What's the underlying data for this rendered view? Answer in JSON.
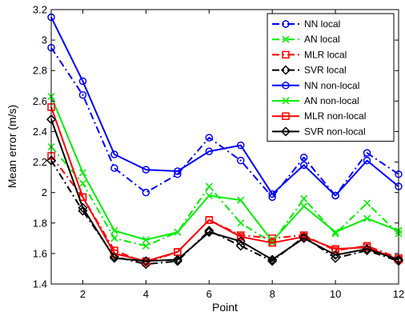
{
  "chart_data": {
    "type": "line",
    "title": "",
    "xlabel": "Point",
    "ylabel": "Mean error (m/s)",
    "xlim": [
      1,
      12
    ],
    "ylim": [
      1.4,
      3.2
    ],
    "x_ticks": [
      2,
      4,
      6,
      8,
      10,
      12
    ],
    "y_ticks": [
      1.4,
      1.6,
      1.8,
      2,
      2.2,
      2.4,
      2.6,
      2.8,
      3,
      3.2
    ],
    "x_tick_labels": [
      "2",
      "4",
      "6",
      "8",
      "10",
      "12"
    ],
    "y_tick_labels": [
      "1.4",
      "1.6",
      "1.8",
      "2",
      "2.2",
      "2.4",
      "2.6",
      "2.8",
      "3",
      "3.2"
    ],
    "grid": false,
    "legend_position": "top-right",
    "x": [
      1,
      2,
      3,
      4,
      5,
      6,
      7,
      8,
      9,
      10,
      11,
      12
    ],
    "series": [
      {
        "name": "NN local",
        "color": "#0000ff",
        "dash": "dashdot",
        "marker": "circle",
        "values": [
          2.95,
          2.64,
          2.16,
          2.0,
          2.12,
          2.36,
          2.21,
          1.97,
          2.23,
          1.98,
          2.26,
          2.12
        ]
      },
      {
        "name": "AN local",
        "color": "#00ee00",
        "dash": "dashdot",
        "marker": "x",
        "values": [
          2.3,
          2.06,
          1.7,
          1.65,
          1.74,
          2.04,
          1.8,
          1.67,
          1.96,
          1.73,
          1.93,
          1.73
        ]
      },
      {
        "name": "MLR local",
        "color": "#ff0000",
        "dash": "dashdot",
        "marker": "square",
        "values": [
          2.24,
          1.97,
          1.62,
          1.54,
          1.61,
          1.82,
          1.72,
          1.7,
          1.72,
          1.62,
          1.65,
          1.57
        ]
      },
      {
        "name": "SVR local",
        "color": "#000000",
        "dash": "dashdot",
        "marker": "diamond",
        "values": [
          2.21,
          1.88,
          1.58,
          1.53,
          1.55,
          1.75,
          1.65,
          1.55,
          1.71,
          1.57,
          1.62,
          1.55
        ]
      },
      {
        "name": "NN non-local",
        "color": "#0000ff",
        "dash": "solid",
        "marker": "circle",
        "values": [
          3.15,
          2.73,
          2.25,
          2.15,
          2.14,
          2.27,
          2.31,
          1.99,
          2.18,
          1.98,
          2.21,
          2.04
        ]
      },
      {
        "name": "AN non-local",
        "color": "#00ee00",
        "dash": "solid",
        "marker": "x",
        "values": [
          2.63,
          2.13,
          1.75,
          1.69,
          1.74,
          1.98,
          1.95,
          1.68,
          1.91,
          1.74,
          1.83,
          1.75
        ]
      },
      {
        "name": "MLR non-local",
        "color": "#ff0000",
        "dash": "solid",
        "marker": "square",
        "values": [
          2.56,
          1.97,
          1.6,
          1.55,
          1.61,
          1.82,
          1.71,
          1.67,
          1.71,
          1.63,
          1.64,
          1.56
        ]
      },
      {
        "name": "SVR non-local",
        "color": "#000000",
        "dash": "solid",
        "marker": "diamond",
        "values": [
          2.48,
          1.9,
          1.57,
          1.55,
          1.56,
          1.74,
          1.68,
          1.56,
          1.7,
          1.59,
          1.63,
          1.56
        ]
      }
    ]
  }
}
